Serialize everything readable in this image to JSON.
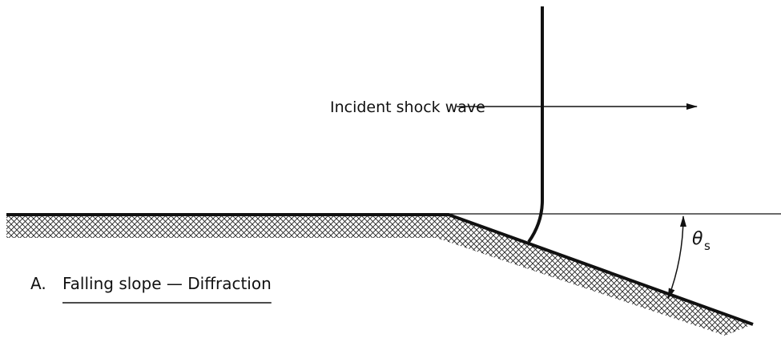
{
  "label": "Incident shock wave",
  "angle": {
    "symbol": "θ",
    "subscript": "s"
  },
  "caption": {
    "letter": "A.",
    "text": "Falling slope — Diffraction"
  }
}
